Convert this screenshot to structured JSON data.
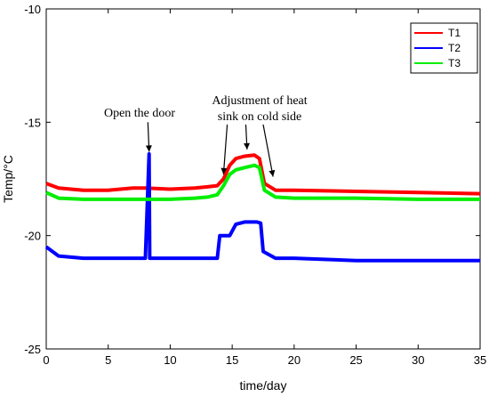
{
  "chart_data": {
    "type": "line",
    "xlabel": "time/day",
    "ylabel": "Temp/°C",
    "xlim": [
      0,
      35
    ],
    "ylim": [
      -25,
      -10
    ],
    "xticks": [
      0,
      5,
      10,
      15,
      20,
      25,
      30,
      35
    ],
    "yticks": [
      -10,
      -15,
      -20,
      -25
    ],
    "grid": false,
    "legend_position": "top-right",
    "series": [
      {
        "name": "T1",
        "color": "#ff0000",
        "x": [
          0,
          1,
          3,
          5,
          7,
          8,
          10,
          12,
          13,
          13.8,
          14.3,
          14.8,
          15.3,
          16,
          16.8,
          17.2,
          17.6,
          18.5,
          20,
          25,
          30,
          35
        ],
        "y": [
          -17.7,
          -17.9,
          -18.0,
          -18.0,
          -17.9,
          -17.9,
          -17.95,
          -17.9,
          -17.85,
          -17.8,
          -17.5,
          -16.9,
          -16.6,
          -16.5,
          -16.45,
          -16.6,
          -17.7,
          -18.0,
          -18.0,
          -18.05,
          -18.1,
          -18.15
        ]
      },
      {
        "name": "T2",
        "color": "#0000ff",
        "x": [
          0,
          1,
          3,
          5,
          8,
          8.3,
          8.35,
          8.4,
          10,
          13,
          13.8,
          14,
          14.8,
          15.3,
          16,
          17,
          17.3,
          17.5,
          18.5,
          20,
          25,
          30,
          35
        ],
        "y": [
          -20.5,
          -20.9,
          -21.0,
          -21.0,
          -21.0,
          -16.4,
          -21.0,
          -21.0,
          -21.0,
          -21.0,
          -21.0,
          -20.0,
          -20.0,
          -19.5,
          -19.4,
          -19.4,
          -19.45,
          -20.7,
          -21.0,
          -21.0,
          -21.1,
          -21.1,
          -21.1
        ]
      },
      {
        "name": "T3",
        "color": "#00ee00",
        "x": [
          0,
          1,
          3,
          5,
          8,
          10,
          12,
          13,
          13.8,
          14.3,
          14.8,
          15.3,
          16,
          16.8,
          17.2,
          17.6,
          18.5,
          20,
          25,
          30,
          35
        ],
        "y": [
          -18.1,
          -18.35,
          -18.4,
          -18.4,
          -18.4,
          -18.4,
          -18.35,
          -18.3,
          -18.2,
          -17.8,
          -17.3,
          -17.1,
          -17.0,
          -16.9,
          -17.0,
          -18.0,
          -18.3,
          -18.35,
          -18.35,
          -18.4,
          -18.4
        ]
      }
    ],
    "annotations": [
      {
        "text": "Open the door",
        "arrow_to": [
          8.3,
          -16.3
        ],
        "arrow_from": [
          8.2,
          -15.0
        ]
      },
      {
        "text": "Adjustment of heat",
        "line2": "sink on cold side",
        "arrows": [
          {
            "from": [
              14.6,
              -15.1
            ],
            "to": [
              14.3,
              -17.3
            ]
          },
          {
            "from": [
              16.1,
              -15.1
            ],
            "to": [
              16.2,
              -16.2
            ]
          },
          {
            "from": [
              17.5,
              -15.1
            ],
            "to": [
              18.3,
              -17.4
            ]
          }
        ]
      }
    ]
  }
}
